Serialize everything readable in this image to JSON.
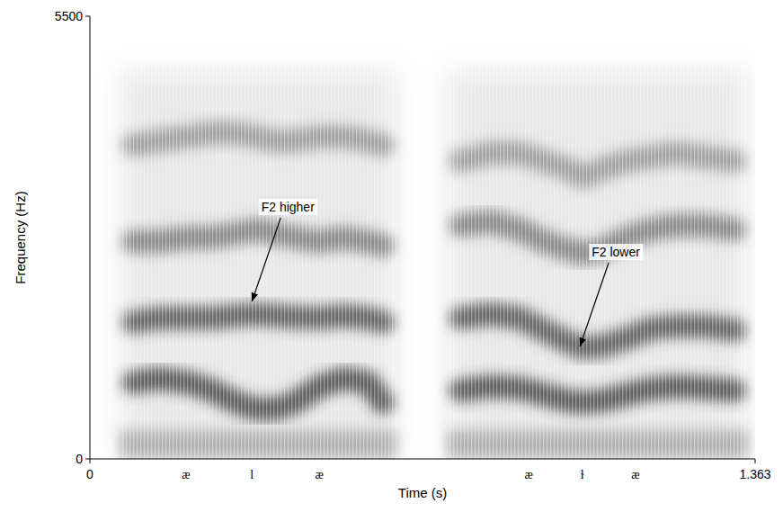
{
  "chart_data": {
    "type": "spectrogram",
    "x_label": "Time (s)",
    "y_label": "Frequency (Hz)",
    "xlim": [
      0,
      1.363
    ],
    "ylim": [
      0,
      5500
    ],
    "xticks": [
      0,
      1.363
    ],
    "yticks": [
      0,
      5500
    ],
    "x": [
      0.09,
      0.14,
      0.2,
      0.25,
      0.3,
      0.34,
      0.38,
      0.42,
      0.47,
      0.52,
      0.57,
      0.6,
      0.68,
      0.76,
      0.82,
      0.88,
      0.93,
      0.98,
      1.01,
      1.05,
      1.1,
      1.15,
      1.2,
      1.26,
      1.32
    ],
    "series": [
      {
        "color": "#2e2e2e",
        "values": [
          950,
          1000,
          950,
          850,
          700,
          620,
          620,
          700,
          900,
          1000,
          950,
          700,
          null,
          850,
          900,
          880,
          800,
          720,
          700,
          720,
          800,
          870,
          900,
          880,
          850
        ]
      },
      {
        "color": "#3a3a3a",
        "values": [
          1700,
          1750,
          1750,
          1750,
          1780,
          1800,
          1780,
          1760,
          1750,
          1780,
          1750,
          1700,
          null,
          1750,
          1800,
          1750,
          1600,
          1450,
          1380,
          1400,
          1500,
          1620,
          1650,
          1650,
          1600
        ]
      },
      {
        "color": "#6a6a6a",
        "values": [
          2700,
          2700,
          2750,
          2750,
          2800,
          2850,
          2800,
          2750,
          2700,
          2750,
          2700,
          2650,
          null,
          2900,
          2950,
          2850,
          2700,
          2600,
          2550,
          2600,
          2750,
          2850,
          2900,
          2900,
          2850
        ]
      },
      {
        "color": "#8a8a8a",
        "values": [
          3900,
          3950,
          4000,
          4050,
          4050,
          4000,
          3950,
          3950,
          4000,
          4000,
          3950,
          3900,
          null,
          3700,
          3800,
          3800,
          3700,
          3600,
          3500,
          3600,
          3700,
          3750,
          3800,
          3750,
          3700
        ]
      }
    ],
    "segments": [
      {
        "label": "æ",
        "x": 0.197
      },
      {
        "label": "l",
        "x": 0.332
      },
      {
        "label": "æ",
        "x": 0.47
      },
      {
        "label": "æ",
        "x": 0.899
      },
      {
        "label": "ɫ",
        "x": 1.009
      },
      {
        "label": "æ",
        "x": 1.118
      }
    ],
    "annotations": [
      {
        "text": "F2 higher",
        "x": 0.332,
        "y": 1956
      },
      {
        "text": "F2 lower",
        "x": 1.004,
        "y": 1397
      }
    ]
  }
}
